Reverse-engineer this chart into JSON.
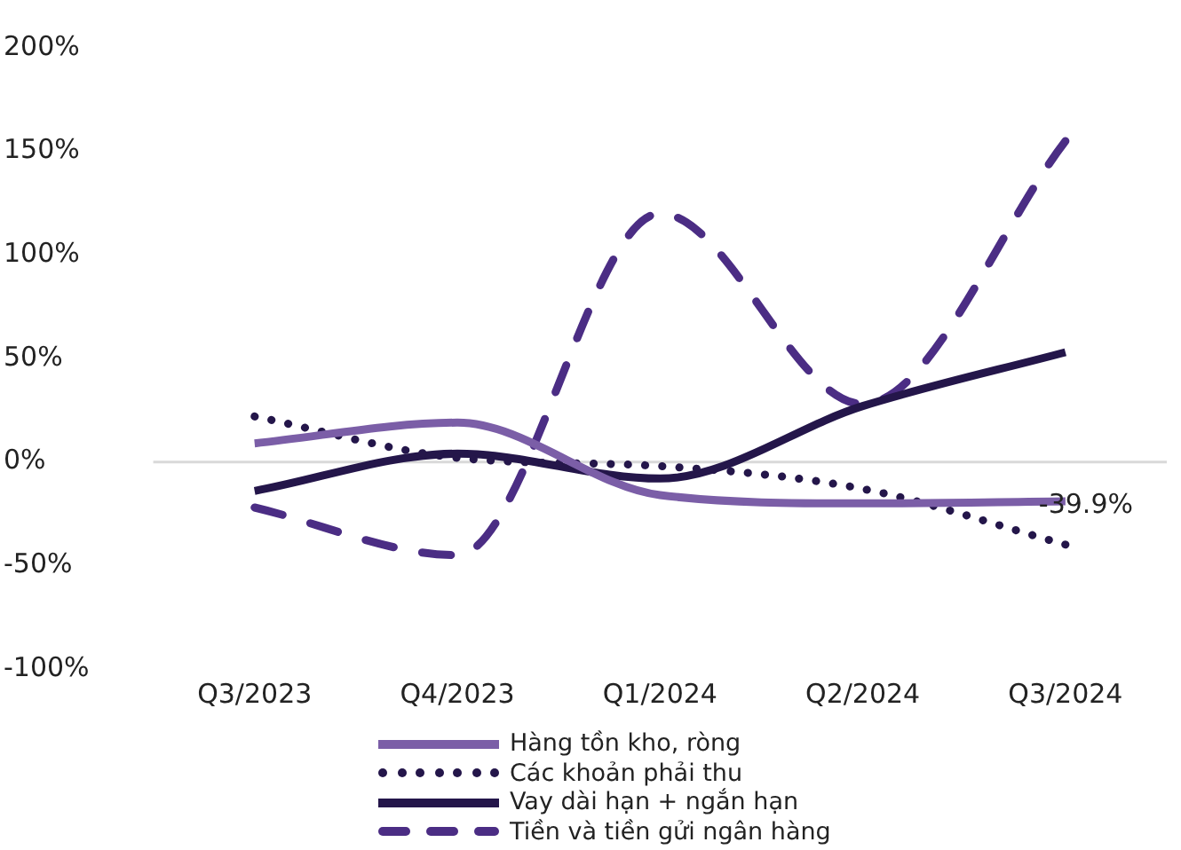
{
  "chart_data": {
    "type": "line",
    "categories": [
      "Q3/2023",
      "Q4/2023",
      "Q1/2024",
      "Q2/2024",
      "Q3/2024"
    ],
    "series": [
      {
        "name": "Hàng tồn kho, ròng",
        "color": "#7b5ea7",
        "line_style": "solid",
        "values": [
          9,
          19,
          -16,
          -20,
          -19
        ]
      },
      {
        "name": "Các khoản phải thu",
        "color": "#24164a",
        "line_style": "dotted",
        "values": [
          22,
          2,
          -2,
          -13,
          -39.9
        ],
        "value_labels": [
          null,
          null,
          null,
          null,
          "-39.9%"
        ]
      },
      {
        "name": "Vay dài hạn + ngắn hạn",
        "color": "#24164a",
        "line_style": "solid",
        "values": [
          -14,
          4,
          -8,
          27,
          53
        ]
      },
      {
        "name": "Tiền và tiền gửi ngân hàng",
        "color": "#4b2d84",
        "line_style": "dashed",
        "values": [
          -22,
          -45,
          120,
          28,
          155
        ]
      }
    ],
    "ylim": [
      -100,
      200
    ],
    "yticks": [
      {
        "value": -100,
        "label": "-100%"
      },
      {
        "value": -50,
        "label": "-50%"
      },
      {
        "value": 0,
        "label": "0%"
      },
      {
        "value": 50,
        "label": "50%"
      },
      {
        "value": 100,
        "label": "100%"
      },
      {
        "value": 150,
        "label": "150%"
      },
      {
        "value": 200,
        "label": "200%"
      }
    ],
    "ref_lines": [
      {
        "axis": "y",
        "value": 0,
        "color": "#d9d9d9"
      }
    ],
    "grid": false,
    "legend": "bottom",
    "marker": "none"
  }
}
